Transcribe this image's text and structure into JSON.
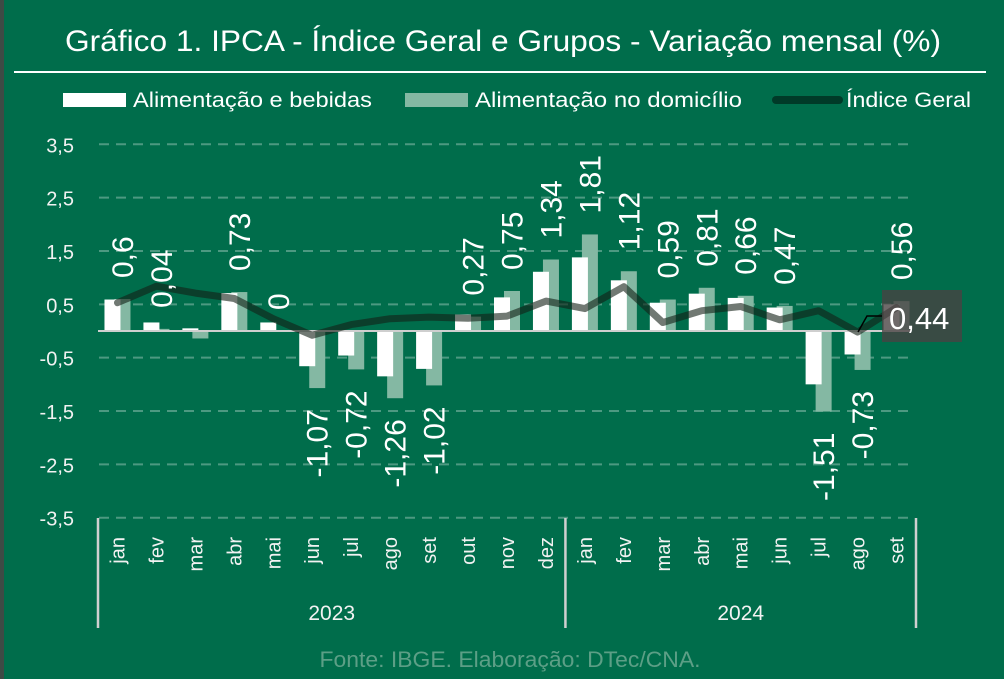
{
  "footer": {
    "source": "Fonte: IBGE. Elaboração: DTec/CNA."
  },
  "colors": {
    "background": "#006d4b",
    "alimentacao_e_bebidas": "#ffffff",
    "alimentacao_no_domicilio": "#84b8a3",
    "indice_geral": "#003a28"
  },
  "chart_data": {
    "type": "bar",
    "combo": "clustered bar + line",
    "title": "Gráfico 1. IPCA - Índice Geral e Grupos - Variação mensal (%)",
    "xlabel": "",
    "ylabel": "",
    "legend": "top",
    "grid": true,
    "ylim": [
      -3.5,
      3.5
    ],
    "y_ticks": [
      3.5,
      2.5,
      1.5,
      0.5,
      -0.5,
      -1.5,
      -2.5,
      -3.5
    ],
    "y_tick_labels": [
      "3,5",
      "2,5",
      "1,5",
      "0,5",
      "-0,5",
      "-1,5",
      "-2,5",
      "-3,5"
    ],
    "categories": [
      "jan",
      "fev",
      "mar",
      "abr",
      "mai",
      "jun",
      "jul",
      "ago",
      "set",
      "out",
      "nov",
      "dez",
      "jan",
      "fev",
      "mar",
      "abr",
      "mai",
      "jun",
      "jul",
      "ago",
      "set"
    ],
    "category_groups": [
      {
        "label": "2023",
        "count": 12
      },
      {
        "label": "2024",
        "count": 9
      }
    ],
    "series": [
      {
        "name": "Alimentação e bebidas",
        "type": "bar",
        "color": "#ffffff",
        "values": [
          0.59,
          0.16,
          0.05,
          0.71,
          0.16,
          -0.66,
          -0.46,
          -0.85,
          -0.71,
          0.31,
          0.63,
          1.11,
          1.38,
          0.95,
          0.53,
          0.7,
          0.62,
          0.44,
          -1.0,
          -0.44,
          0.5
        ]
      },
      {
        "name": "Alimentação no domicílio",
        "type": "bar",
        "color": "#84b8a3",
        "values": [
          0.6,
          0.04,
          -0.14,
          0.73,
          0.0,
          -1.07,
          -0.72,
          -1.26,
          -1.02,
          0.27,
          0.75,
          1.34,
          1.81,
          1.12,
          0.59,
          0.81,
          0.66,
          0.47,
          -1.51,
          -0.73,
          0.56
        ],
        "data_labels": [
          "0,6",
          "0,04",
          null,
          "0,73",
          "0",
          "-1,07",
          "-0,72",
          "-1,26",
          "-1,02",
          "0,27",
          "0,75",
          "1,34",
          "1,81",
          "1,12",
          "0,59",
          "0,81",
          "0,66",
          "0,47",
          "-1,51",
          "-0,73",
          "0,56"
        ]
      },
      {
        "name": "Índice Geral",
        "type": "line",
        "color": "#003a28",
        "values": [
          0.53,
          0.84,
          0.71,
          0.61,
          0.23,
          -0.08,
          0.12,
          0.23,
          0.26,
          0.24,
          0.28,
          0.56,
          0.42,
          0.83,
          0.16,
          0.38,
          0.46,
          0.21,
          0.38,
          -0.02,
          0.44
        ]
      }
    ],
    "annotations": [
      {
        "series": "Índice Geral",
        "category_index": 20,
        "text": "0,44"
      }
    ]
  }
}
